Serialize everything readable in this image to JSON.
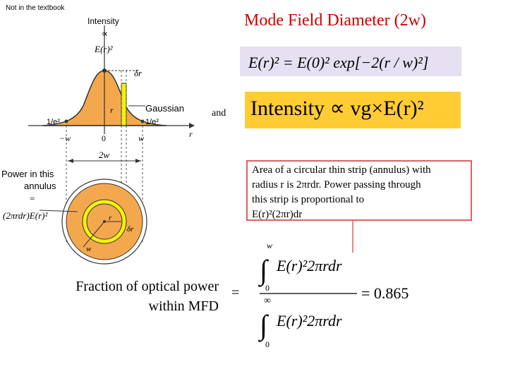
{
  "note": "Not in the textbook",
  "title": "Mode Field Diameter (2w)",
  "and_label": "and",
  "intensity_text": "Intensity ∝ vg×E(r)²",
  "annulus_note": {
    "line1": "Area of a circular thin strip (annulus) with",
    "line2": "radius r is 2πrdr. Power passing through",
    "line3": "this strip is proportional to",
    "line4": "E(r)²(2πr)dr"
  },
  "fraction_label": {
    "line1": "Fraction of optical power",
    "line2": "within MFD"
  },
  "equals": "=",
  "diagram": {
    "intensity_axis": "Intensity",
    "proportional": "∝",
    "er2": "E(r)²",
    "delta_r": "δr",
    "r_mark": "r",
    "gaussian": "Gaussian",
    "inv_e2_left": "1/e²",
    "inv_e2_right": "1/e²",
    "neg_w": "−w",
    "zero": "0",
    "w": "w",
    "r_axis": "r",
    "two_w": "2w",
    "power_line1": "Power in this",
    "power_line2": "annulus",
    "power_line3": "=",
    "power_line4": "(2πrdr)E(r)²",
    "ring_r": "r",
    "ring_dr": "δr",
    "ring_w": "w"
  },
  "equation_main": {
    "lhs": "E(r)² = E(0)² exp[−2(r / w)²]"
  },
  "fraction_eq": {
    "upper_limit_top": "w",
    "lower_limit_top": "0",
    "numerator": "E(r)²2πrdr",
    "upper_limit_bottom": "∞",
    "lower_limit_bottom": "0",
    "denominator": "E(r)²2πrdr",
    "result": "= 0.865"
  },
  "colors": {
    "title": "#cc0000",
    "gaussian_fill": "#f4a84d",
    "strip": "#f2f20a",
    "equation_bg": "#e6e0f2",
    "intensity_bg": "#ffcc33",
    "note_border": "#e06060"
  }
}
